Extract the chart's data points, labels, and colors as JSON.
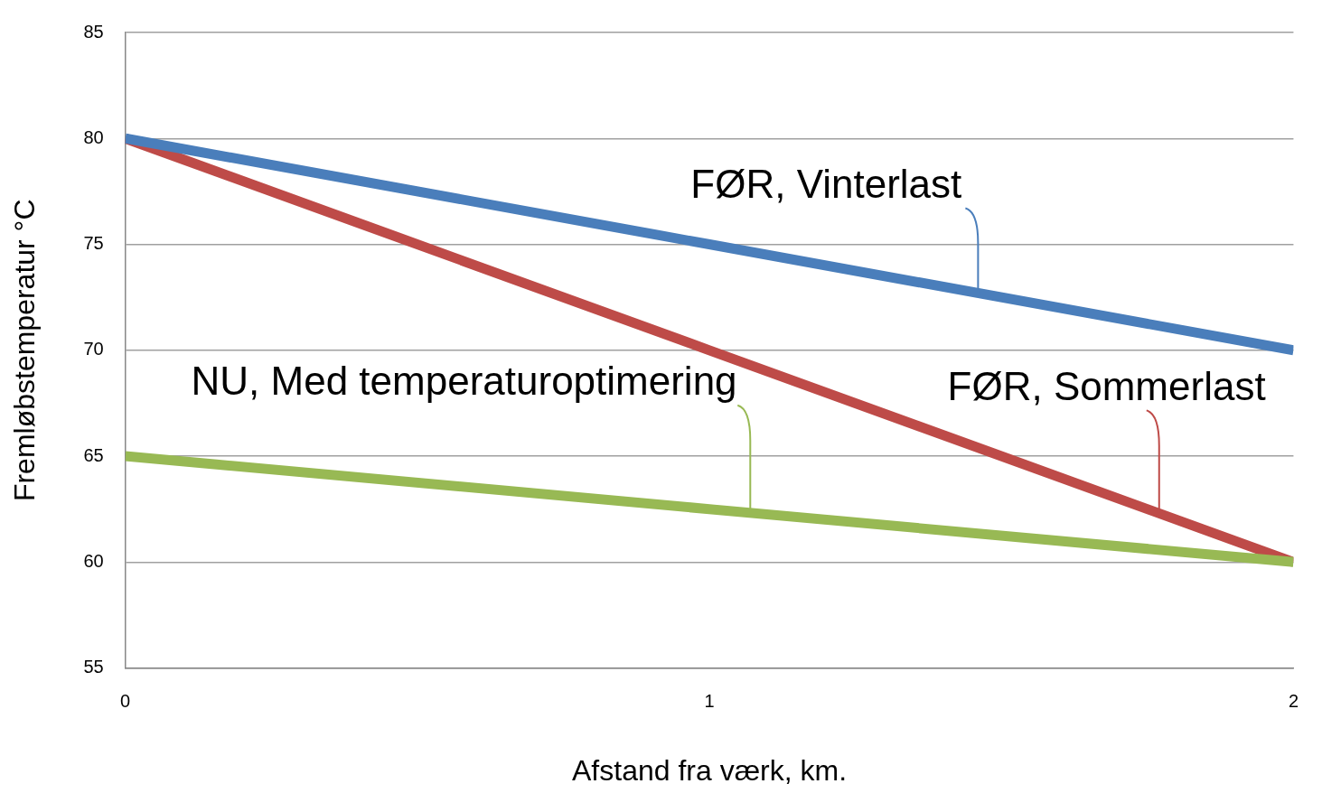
{
  "chart_data": {
    "type": "line",
    "xlabel": "Afstand fra værk, km.",
    "ylabel": "Fremløbstemperatur °C",
    "x": [
      0,
      1,
      2
    ],
    "xlim": [
      0,
      2
    ],
    "xticks": [
      0,
      1,
      2
    ],
    "ylim": [
      55,
      85
    ],
    "yticks": [
      55,
      60,
      65,
      70,
      75,
      80,
      85
    ],
    "grid": "y",
    "legend": false,
    "marker": "none",
    "line_style": "solid",
    "series": [
      {
        "name": "FØR, Vinterlast",
        "color": "#4a7ebb",
        "values": [
          80,
          75,
          70
        ]
      },
      {
        "name": "NU, Med temperaturoptimering",
        "color": "#98b954",
        "values": [
          65,
          62.5,
          60
        ]
      },
      {
        "name": "FØR, Sommerlast",
        "color": "#be4b48",
        "values": [
          80,
          70,
          60
        ]
      }
    ]
  }
}
